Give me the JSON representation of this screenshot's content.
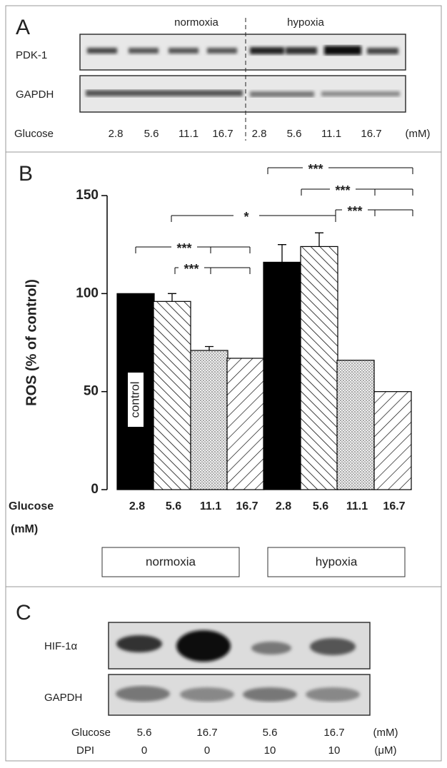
{
  "panel_a": {
    "letter": "A",
    "conditions": [
      "normoxia",
      "hypoxia"
    ],
    "blots": [
      "PDK-1",
      "GAPDH"
    ],
    "row_label": "Glucose",
    "lanes": [
      "2.8",
      "5.6",
      "11.1",
      "16.7",
      "2.8",
      "5.6",
      "11.1",
      "16.7"
    ],
    "unit": "(mM)"
  },
  "chart_data": {
    "type": "bar",
    "letter": "B",
    "y_label": "ROS (% of control)",
    "x_label": "Glucose",
    "x_unit": "(mM)",
    "categories": [
      "2.8",
      "5.6",
      "11.1",
      "16.7",
      "2.8",
      "5.6",
      "11.1",
      "16.7"
    ],
    "values": [
      100,
      96,
      71,
      67,
      116,
      124,
      66,
      50
    ],
    "errors": [
      null,
      4,
      2,
      null,
      9,
      7,
      null,
      null
    ],
    "fills": [
      "solid",
      "hatch-back",
      "dots",
      "hatch-fwd",
      "solid",
      "hatch-back",
      "dots",
      "hatch-fwd"
    ],
    "color": "#000000",
    "groups": [
      "normoxia",
      "hypoxia"
    ],
    "bar_label": "control",
    "annotations": [
      "***",
      "***",
      "*",
      "***",
      "***",
      "***"
    ],
    "ylim": [
      0,
      150
    ],
    "yticks": [
      0,
      50,
      100,
      150
    ]
  },
  "panel_c": {
    "letter": "C",
    "blots": [
      "HIF-1α",
      "GAPDH"
    ],
    "rows": [
      {
        "label": "Glucose",
        "values": [
          "5.6",
          "16.7",
          "5.6",
          "16.7"
        ],
        "unit": "(mM)"
      },
      {
        "label": "DPI",
        "values": [
          "0",
          "0",
          "10",
          "10"
        ],
        "unit": "(μM)"
      }
    ]
  }
}
